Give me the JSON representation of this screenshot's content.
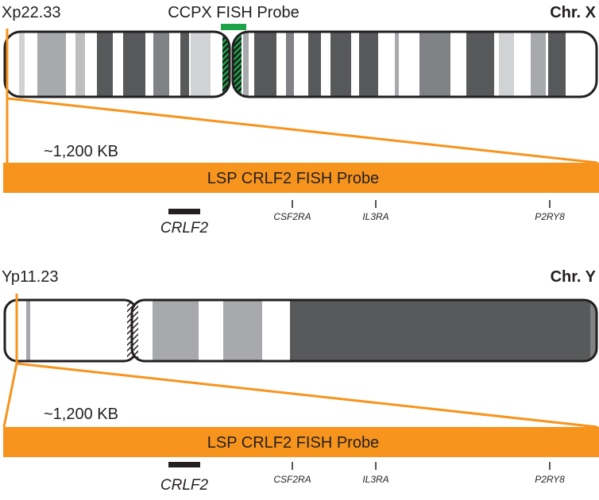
{
  "panels": [
    {
      "band": "Xp22.33",
      "probe_label": "CCPX FISH Probe",
      "chromosome": "Chr. X",
      "size": "~1,200 KB",
      "probe": "LSP CRLF2 FISH Probe",
      "genes": [
        "CRLF2",
        "CSF2RA",
        "IL3RA",
        "P2RY8"
      ]
    },
    {
      "band": "Yp11.23",
      "chromosome": "Chr. Y",
      "size": "~1,200 KB",
      "probe": "LSP CRLF2 FISH Probe",
      "genes": [
        "CRLF2",
        "CSF2RA",
        "IL3RA",
        "P2RY8"
      ]
    }
  ]
}
